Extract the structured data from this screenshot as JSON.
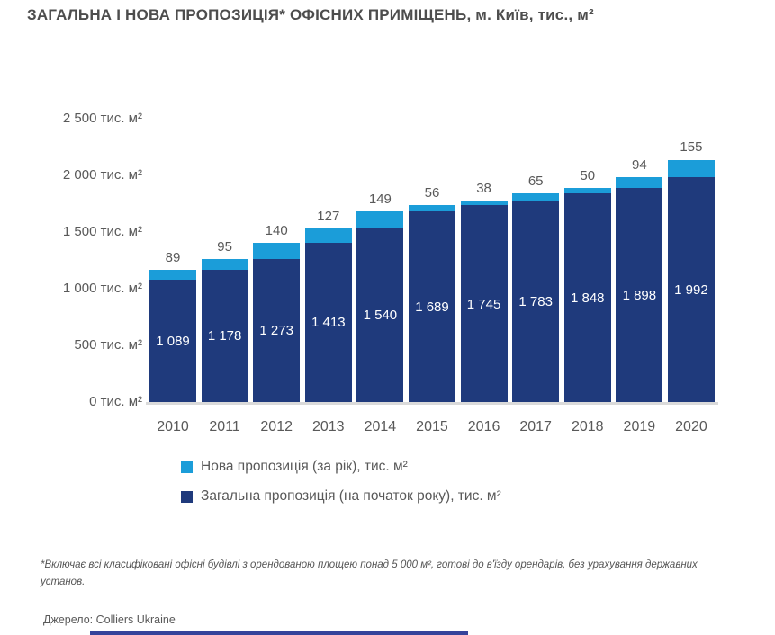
{
  "title": "ЗАГАЛЬНА І НОВА ПРОПОЗИЦІЯ* ОФІСНИХ ПРИМІЩЕНЬ, м. Київ, тис., м²",
  "chart_data": {
    "type": "bar",
    "stacked": true,
    "title": "ЗАГАЛЬНА І НОВА ПРОПОЗИЦІЯ* ОФІСНИХ ПРИМІЩЕНЬ, м. Київ, тис., м²",
    "categories": [
      "2010",
      "2011",
      "2012",
      "2013",
      "2014",
      "2015",
      "2016",
      "2017",
      "2018",
      "2019",
      "2020"
    ],
    "series": [
      {
        "name": "Загальна пропозиція (на початок року), тис. м²",
        "color": "#1f3a7c",
        "values": [
          1089,
          1178,
          1273,
          1413,
          1540,
          1689,
          1745,
          1783,
          1848,
          1898,
          1992
        ]
      },
      {
        "name": "Нова пропозиція (за рік), тис. м²",
        "color": "#1b9dd9",
        "values": [
          89,
          95,
          140,
          127,
          149,
          56,
          38,
          65,
          50,
          94,
          155
        ]
      }
    ],
    "ylim": [
      0,
      2500
    ],
    "y_ticks": [
      {
        "value": 2500,
        "label": "2 500 тис. м²"
      },
      {
        "value": 2000,
        "label": "2 000 тис. м²"
      },
      {
        "value": 1500,
        "label": "1 500 тис. м²"
      },
      {
        "value": 1000,
        "label": "1 000 тис. м²"
      },
      {
        "value": 500,
        "label": "500 тис. м²"
      },
      {
        "value": 0,
        "label": "0 тис. м²"
      }
    ],
    "grid": false,
    "legend_position": "bottom-left",
    "value_label_style": {
      "total_inside": "#ffffff",
      "new_above": "#595959"
    }
  },
  "legend": {
    "items": [
      {
        "label": "Нова пропозиція (за рік), тис. м²",
        "color": "#1b9dd9"
      },
      {
        "label": "Загальна пропозиція (на початок року), тис. м²",
        "color": "#1f3a7c"
      }
    ]
  },
  "footnote": "*Включає всі класифіковані офісні будівлі з орендованою площею понад 5 000 м², готові до в'їзду орендарів, без урахування державних установ.",
  "source": "Джерело: Colliers Ukraine",
  "colors": {
    "total_bar": "#1f3a7c",
    "new_bar": "#1b9dd9",
    "axis_text": "#595959",
    "title_text": "#4d4d4d",
    "baseline": "#dadada",
    "bottom_accent": "#35439b"
  }
}
